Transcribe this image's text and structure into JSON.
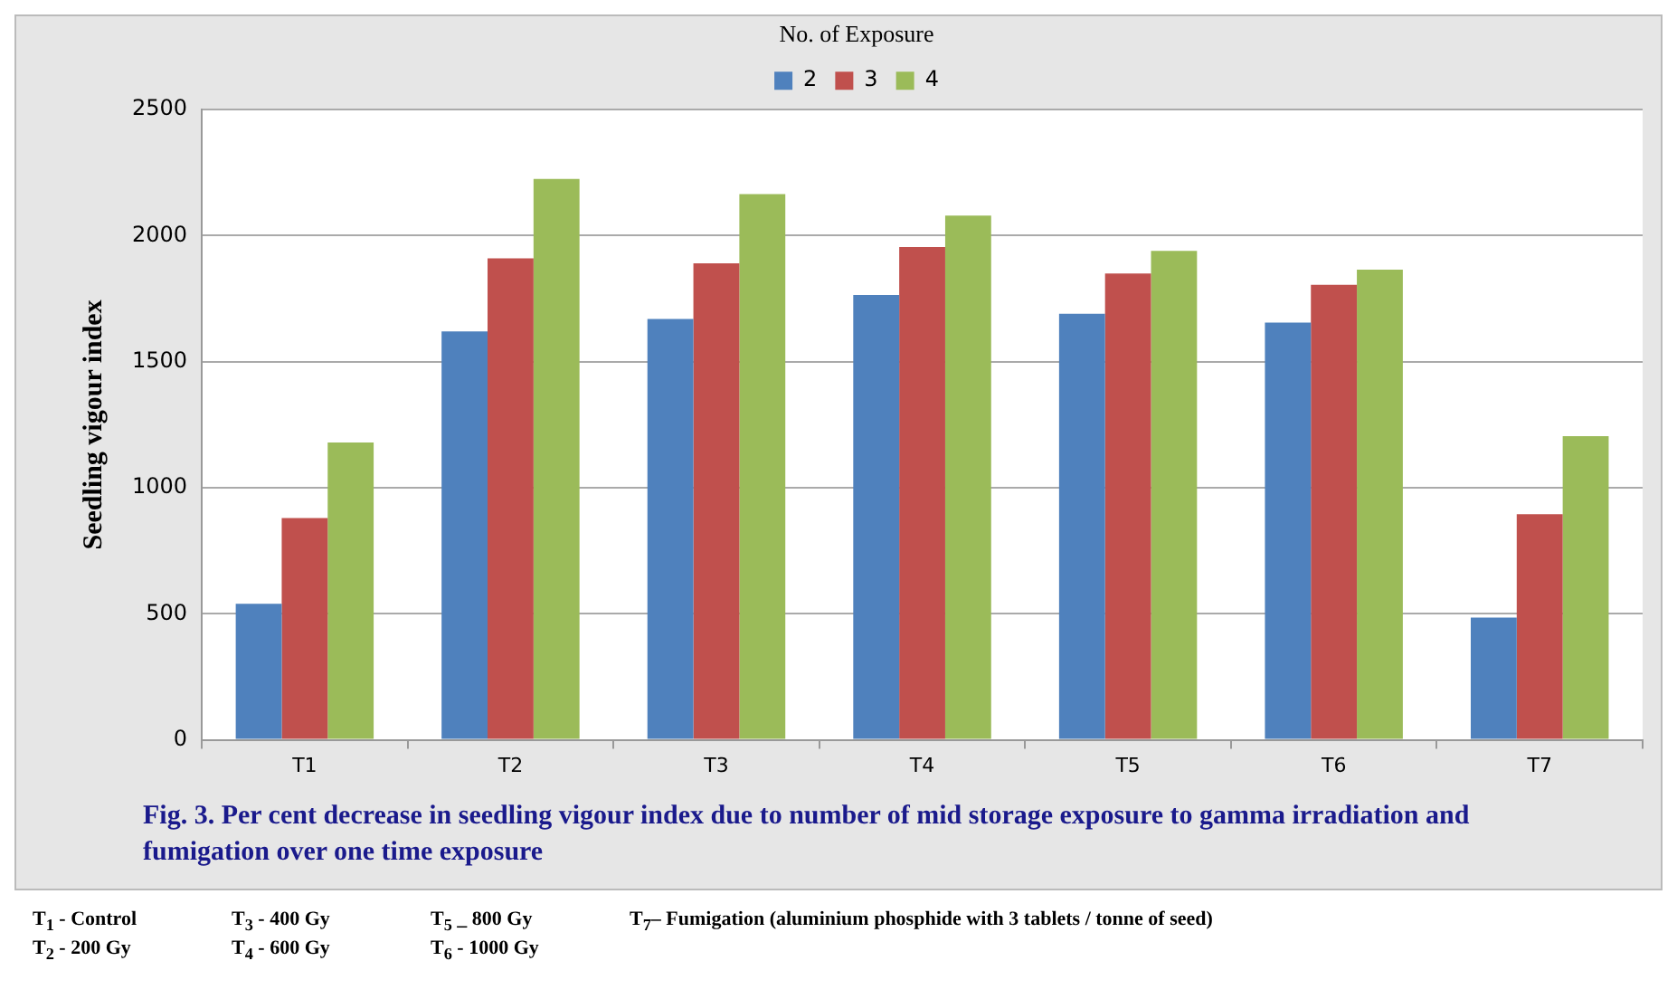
{
  "chart_data": {
    "type": "bar",
    "title": "Fig. 3. Per cent decrease in seedling vigour index due to number of mid storage exposure to gamma irradiation and fumigation over one time exposure",
    "ylabel": "Seedling vigour index",
    "legend_title": "No. of Exposure",
    "categories": [
      "T1",
      "T2",
      "T3",
      "T4",
      "T5",
      "T6",
      "T7"
    ],
    "series": [
      {
        "name": "2",
        "color": "#4f81bd",
        "values": [
          540,
          1620,
          1670,
          1765,
          1690,
          1655,
          485
        ]
      },
      {
        "name": "3",
        "color": "#c0504d",
        "values": [
          880,
          1910,
          1890,
          1955,
          1850,
          1805,
          895
        ]
      },
      {
        "name": "4",
        "color": "#9bbb59",
        "values": [
          1180,
          2225,
          2165,
          2080,
          1940,
          1865,
          1205
        ]
      }
    ],
    "ylim": [
      0,
      2500
    ],
    "yticks": [
      0,
      500,
      1000,
      1500,
      2000,
      2500
    ],
    "grid": "y",
    "legend": "top",
    "annotations": [
      "T$_{1}$ - Control",
      "T$_{2}$ - 200 Gy",
      "T$_{3}$ - 400 Gy",
      "T$_{4}$ - 600 Gy",
      "T$_{5}$ _ 800 Gy",
      "T$_{6}$ - 1000 Gy",
      "T$_{7}$– Fumigation (aluminium phosphide with 3 tablets / tonne of seed)"
    ]
  }
}
